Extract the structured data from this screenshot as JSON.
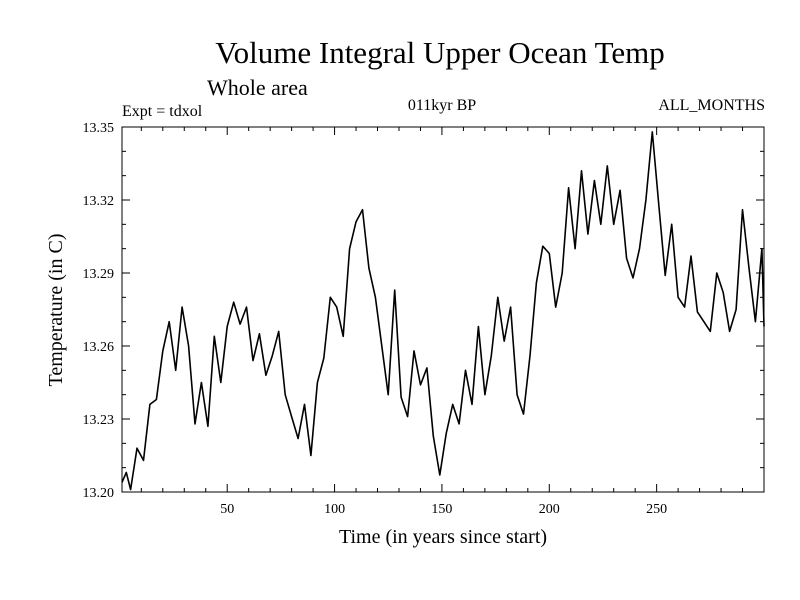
{
  "chart_data": {
    "type": "line",
    "title": "Volume Integral Upper Ocean Temp",
    "subtitle": "Whole area",
    "expt_label": "Expt = tdxol",
    "period_label": "011kyr BP",
    "months_label": "ALL_MONTHS",
    "xlabel": "Time (in years since start)",
    "ylabel": "Temperature (in C)",
    "xlim": [
      1,
      300
    ],
    "ylim": [
      13.2,
      13.35
    ],
    "xticks": [
      50,
      100,
      150,
      200,
      250
    ],
    "xtick_labels": [
      "50",
      "100",
      "150",
      "200",
      "250"
    ],
    "yticks": [
      13.2,
      13.23,
      13.26,
      13.29,
      13.32,
      13.35
    ],
    "ytick_labels": [
      "13.20",
      "13.23",
      "13.26",
      "13.29",
      "13.32",
      "13.35"
    ],
    "grid": false,
    "series": [
      {
        "color": "#000000",
        "x": [
          1,
          3,
          5,
          8,
          11,
          14,
          17,
          20,
          23,
          26,
          29,
          32,
          35,
          38,
          41,
          44,
          47,
          50,
          53,
          56,
          59,
          62,
          65,
          68,
          71,
          74,
          77,
          80,
          83,
          86,
          89,
          92,
          95,
          98,
          101,
          104,
          107,
          110,
          113,
          116,
          119,
          122,
          125,
          128,
          131,
          134,
          137,
          140,
          143,
          146,
          149,
          152,
          155,
          158,
          161,
          164,
          167,
          170,
          173,
          176,
          179,
          182,
          185,
          188,
          191,
          194,
          197,
          200,
          203,
          206,
          209,
          212,
          215,
          218,
          221,
          224,
          227,
          230,
          233,
          236,
          239,
          242,
          245,
          248,
          251,
          254,
          257,
          260,
          263,
          266,
          269,
          272,
          275,
          278,
          281,
          284,
          287,
          290,
          293,
          296,
          299,
          300
        ],
        "values": [
          13.204,
          13.208,
          13.201,
          13.218,
          13.213,
          13.236,
          13.238,
          13.258,
          13.27,
          13.25,
          13.276,
          13.26,
          13.228,
          13.245,
          13.227,
          13.264,
          13.245,
          13.268,
          13.278,
          13.269,
          13.276,
          13.254,
          13.265,
          13.248,
          13.256,
          13.266,
          13.24,
          13.231,
          13.222,
          13.236,
          13.215,
          13.245,
          13.255,
          13.28,
          13.276,
          13.264,
          13.3,
          13.311,
          13.316,
          13.292,
          13.28,
          13.26,
          13.24,
          13.283,
          13.239,
          13.231,
          13.258,
          13.244,
          13.251,
          13.223,
          13.207,
          13.224,
          13.236,
          13.228,
          13.25,
          13.236,
          13.268,
          13.24,
          13.256,
          13.28,
          13.262,
          13.276,
          13.24,
          13.232,
          13.256,
          13.286,
          13.301,
          13.298,
          13.276,
          13.29,
          13.325,
          13.3,
          13.332,
          13.306,
          13.328,
          13.31,
          13.334,
          13.31,
          13.324,
          13.296,
          13.288,
          13.3,
          13.32,
          13.348,
          13.318,
          13.289,
          13.31,
          13.28,
          13.276,
          13.297,
          13.274,
          13.27,
          13.266,
          13.29,
          13.282,
          13.266,
          13.275,
          13.316,
          13.292,
          13.27,
          13.3,
          13.268
        ]
      }
    ]
  }
}
